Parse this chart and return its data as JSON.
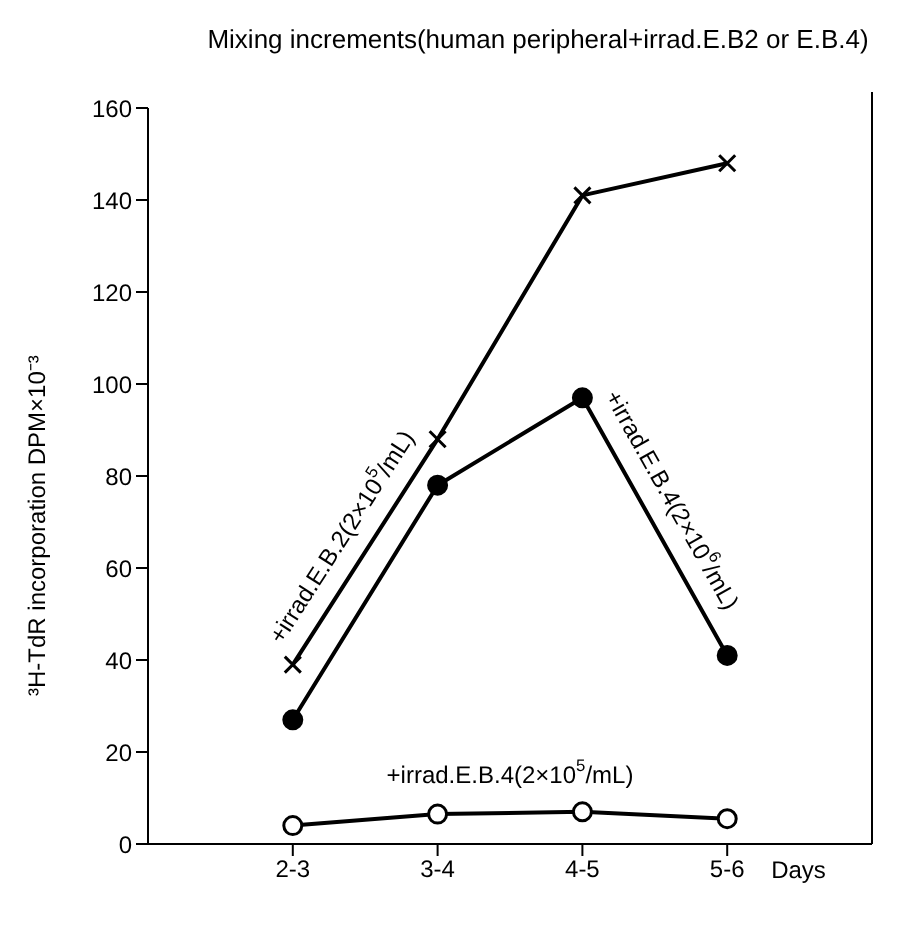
{
  "chart_data": {
    "type": "line",
    "title": "Mixing increments(human peripheral+irrad.E.B2 or E.B.4)",
    "ylabel": "³H-TdR incorporation DPM×10⁻³",
    "xlabel": "Days",
    "categories": [
      "2-3",
      "3-4",
      "4-5",
      "5-6"
    ],
    "ylim": [
      0,
      160
    ],
    "yticks": [
      0,
      20,
      40,
      60,
      80,
      100,
      120,
      140,
      160
    ],
    "legend": false,
    "grid": false,
    "line_style": "solid",
    "series": [
      {
        "name": "+irrad.E.B.2(2×10$^{5}$/mL)",
        "color": "#000000",
        "marker": "cross",
        "values": [
          39,
          88,
          141,
          148
        ]
      },
      {
        "name": "+irrad.E.B.4(2×10$^{6}$/mL)",
        "color": "#000000",
        "marker": "circle",
        "values": [
          27,
          78,
          97,
          41
        ]
      },
      {
        "name": "+irrad.E.B.4(2×10$^{5}$/mL)",
        "color": "#000000",
        "marker": "circle",
        "values": [
          4,
          6.5,
          7,
          5.5
        ]
      }
    ]
  }
}
